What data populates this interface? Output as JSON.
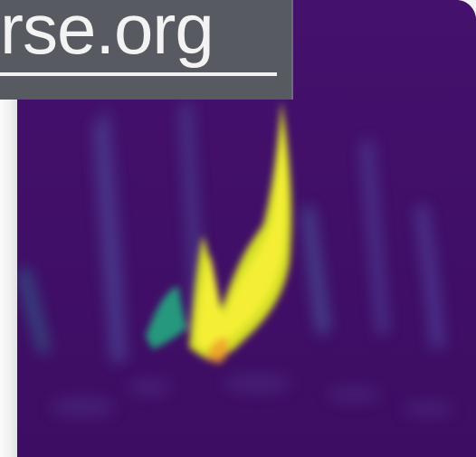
{
  "banner": {
    "url_text": "rse.org"
  },
  "colors": {
    "background": "#43106a",
    "banner": "#575b61",
    "banner_text": "#f3f3f3",
    "highlight": "#f1ee36",
    "teal": "#24a17c"
  },
  "icons": {
    "url": "link-banner"
  }
}
